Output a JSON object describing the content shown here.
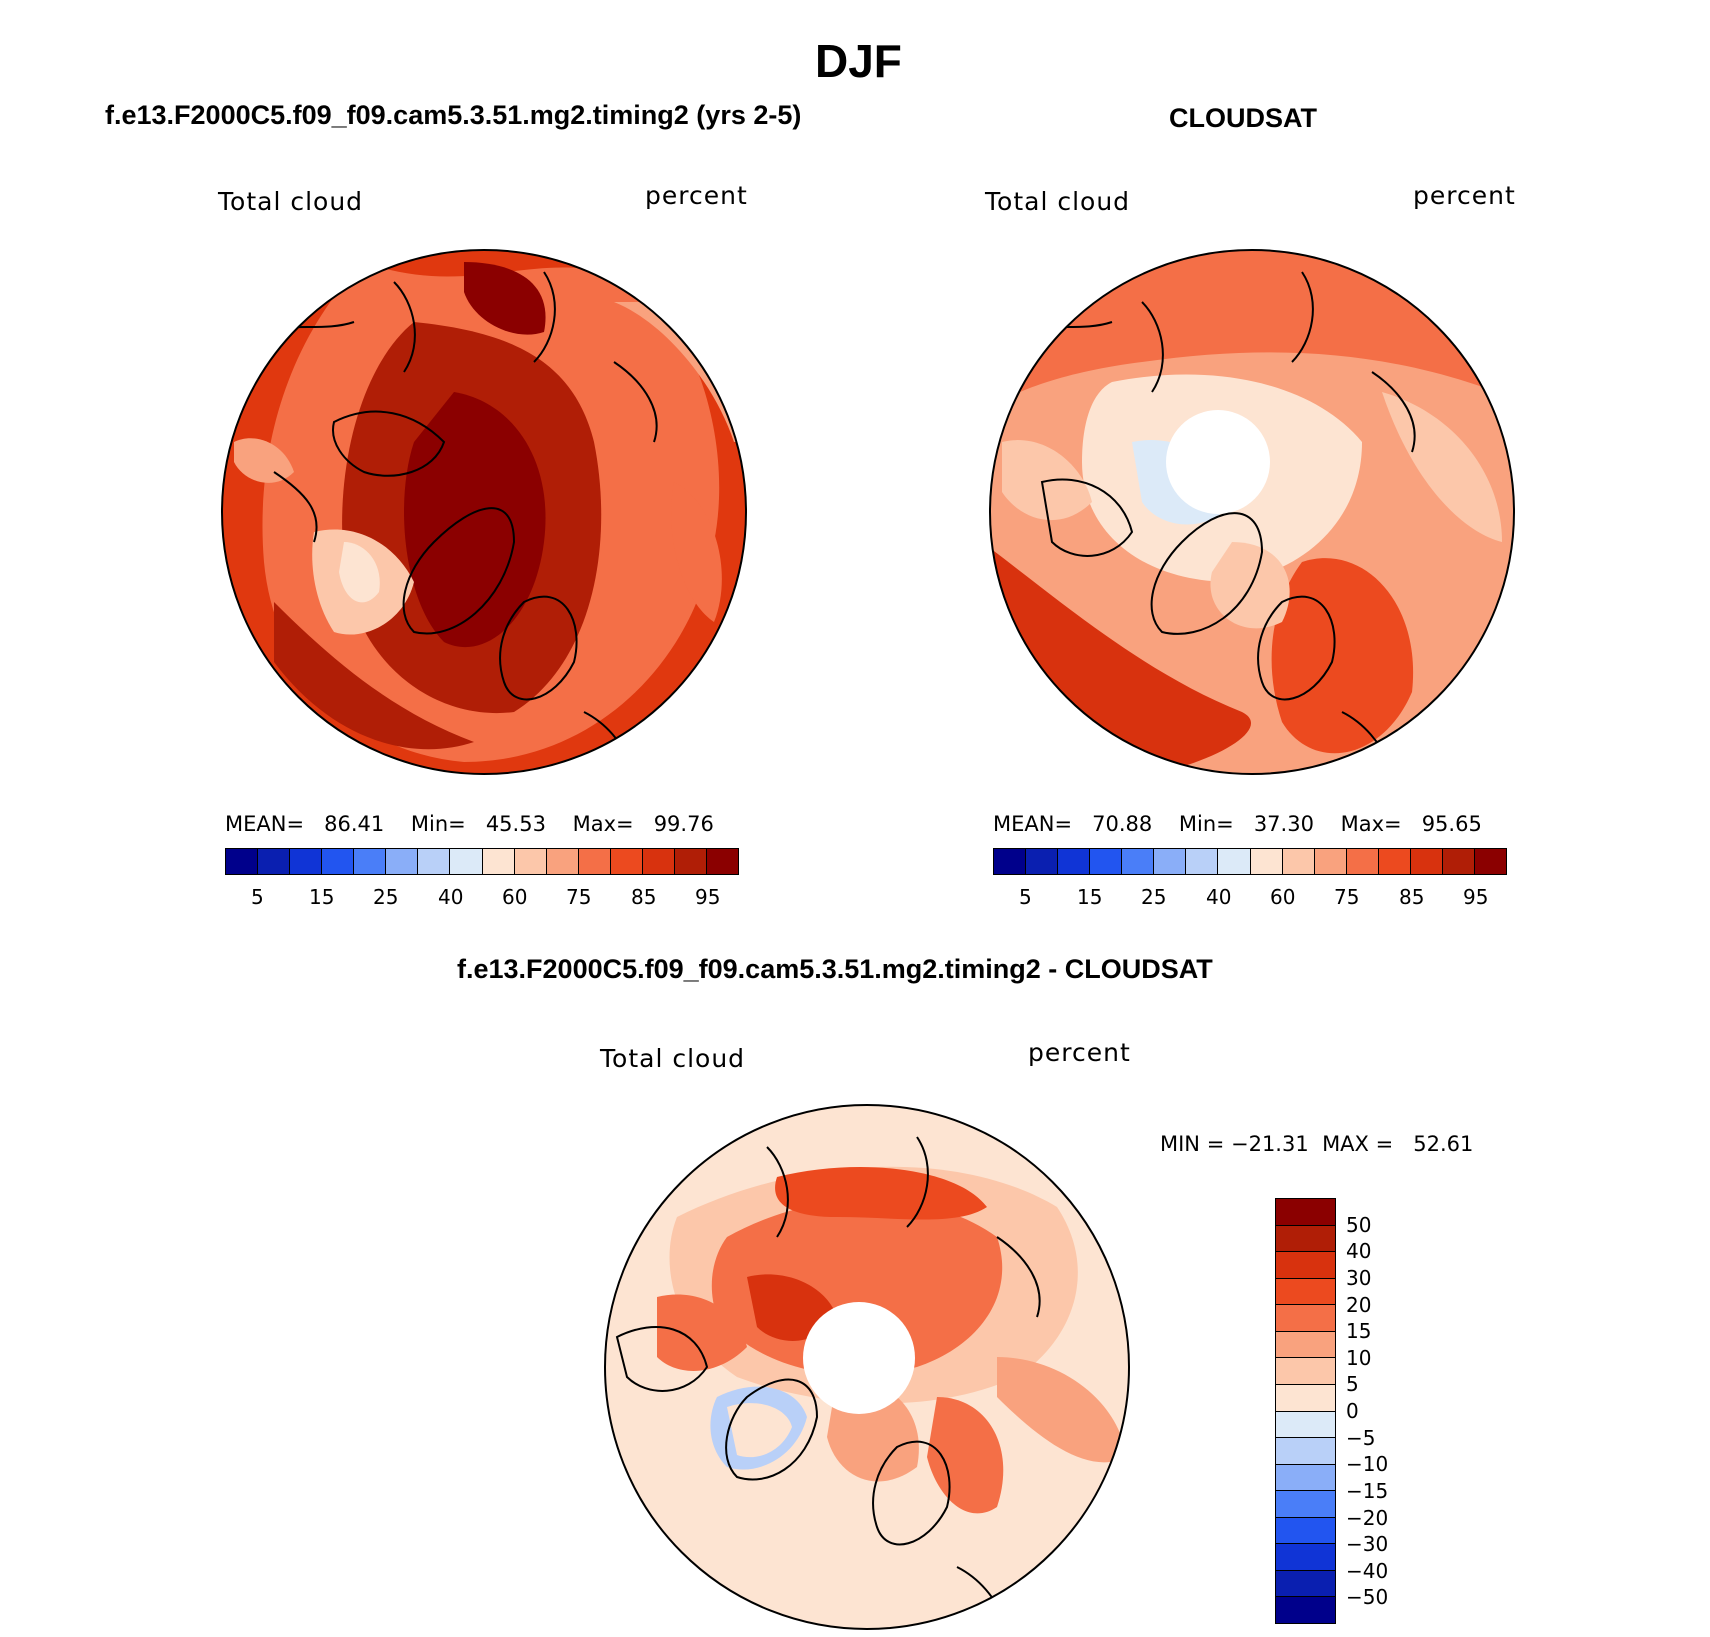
{
  "figure": {
    "title": "DJF"
  },
  "panels": [
    {
      "id": "model",
      "title": "f.e13.F2000C5.f09_f09.cam5.3.51.mg2.timing2 (yrs 2-5)",
      "left_label": "Total cloud",
      "right_label": "percent",
      "stats": {
        "mean_label": "MEAN=",
        "mean": "86.41",
        "min_label": "Min=",
        "min": "45.53",
        "max_label": "Max=",
        "max": "99.76"
      },
      "ticks": [
        "5",
        "15",
        "25",
        "40",
        "60",
        "75",
        "85",
        "95"
      ]
    },
    {
      "id": "obs",
      "title": "CLOUDSAT",
      "left_label": "Total cloud",
      "right_label": "percent",
      "stats": {
        "mean_label": "MEAN=",
        "mean": "70.88",
        "min_label": "Min=",
        "min": "37.30",
        "max_label": "Max=",
        "max": "95.65"
      },
      "ticks": [
        "5",
        "15",
        "25",
        "40",
        "60",
        "75",
        "85",
        "95"
      ]
    },
    {
      "id": "diff",
      "title": "f.e13.F2000C5.f09_f09.cam5.3.51.mg2.timing2 - CLOUDSAT",
      "left_label": "Total cloud",
      "right_label": "percent",
      "stats": {
        "min_label": "MIN =",
        "min": "−21.31",
        "max_label": "MAX =",
        "max": "52.61"
      },
      "ticks": [
        "50",
        "40",
        "30",
        "20",
        "15",
        "10",
        "5",
        "0",
        "−5",
        "−10",
        "−15",
        "−20",
        "−30",
        "−40",
        "−50"
      ]
    }
  ],
  "colors": {
    "abs_scale": [
      "#00008b",
      "#0a1fb0",
      "#1034d6",
      "#2255f0",
      "#4a7ef8",
      "#8aaef8",
      "#b9d0f8",
      "#dceaf8",
      "#fde4d2",
      "#fcc7aa",
      "#f9a27e",
      "#f46f47",
      "#ec4a1f",
      "#d8320e",
      "#b01e06",
      "#8b0000"
    ],
    "diff_scale": [
      "#8b0000",
      "#b01e06",
      "#d8320e",
      "#ec4a1f",
      "#f46f47",
      "#f9a27e",
      "#fcc7aa",
      "#fde4d2",
      "#dceaf8",
      "#b9d0f8",
      "#8aaef8",
      "#4a7ef8",
      "#2255f0",
      "#1034d6",
      "#0a1fb0",
      "#00008b"
    ]
  }
}
